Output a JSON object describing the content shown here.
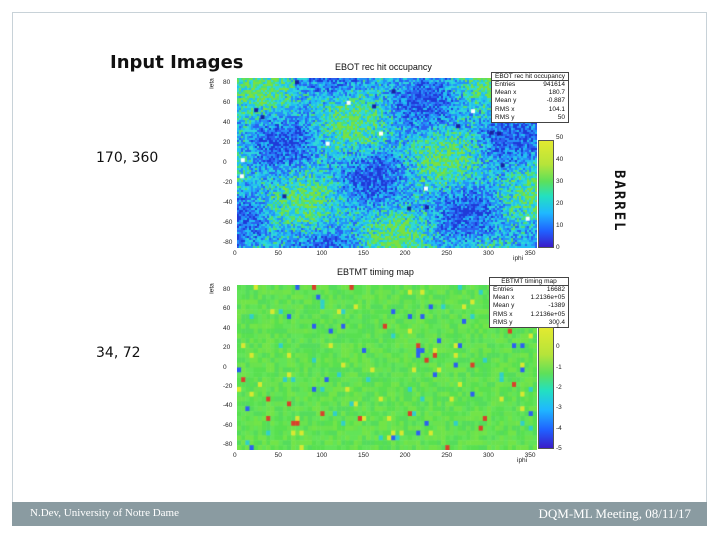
{
  "slide": {
    "title": "Input Images",
    "label_top": "170, 360",
    "label_bottom": "34, 72",
    "side_label": "BARREL",
    "footer_left": "N.Dev, University of Notre Dame",
    "footer_right": "DQM-ML Meeting, 08/11/17"
  },
  "chart_data": [
    {
      "type": "heatmap",
      "title": "EBOT rec hit occupancy",
      "xlabel": "iphi",
      "ylabel": "ieta",
      "xlim": [
        0,
        360
      ],
      "ylim": [
        -85,
        85
      ],
      "x_ticks": [
        "0",
        "50",
        "100",
        "150",
        "200",
        "250",
        "300",
        "350"
      ],
      "y_ticks": [
        "80",
        "60",
        "40",
        "20",
        "0",
        "-20",
        "-40",
        "-60",
        "-80"
      ],
      "grid_size": [
        170,
        360
      ],
      "colorbar_ticks": [
        "50",
        "40",
        "30",
        "20",
        "10",
        "0"
      ],
      "colorbar_range": [
        0,
        50
      ],
      "stats": {
        "title": "EBOT rec hit occupancy",
        "rows": [
          {
            "key": "Entries",
            "value": "941614"
          },
          {
            "key": "Mean x",
            "value": "180.7"
          },
          {
            "key": "Mean y",
            "value": "-0.887"
          },
          {
            "key": "RMS x",
            "value": "104.1"
          },
          {
            "key": "RMS y",
            "value": "50"
          }
        ]
      },
      "colors": {
        "low": "#2a48e0",
        "mid": "#22c0f0",
        "high": "#5fe050",
        "hot": "#ffffff"
      }
    },
    {
      "type": "heatmap",
      "title": "EBTMT timing map",
      "xlabel": "iphi",
      "ylabel": "ieta",
      "xlim": [
        0,
        360
      ],
      "ylim": [
        -85,
        85
      ],
      "x_ticks": [
        "0",
        "50",
        "100",
        "150",
        "200",
        "250",
        "300",
        "350"
      ],
      "y_ticks": [
        "80",
        "60",
        "40",
        "20",
        "0",
        "-20",
        "-40",
        "-60",
        "-80"
      ],
      "grid_size": [
        34,
        72
      ],
      "colorbar_ticks": [
        "1",
        "0",
        "-1",
        "-2",
        "-3",
        "-4",
        "-5"
      ],
      "colorbar_range": [
        -5,
        1
      ],
      "stats": {
        "title": "EBTMT timing map",
        "rows": [
          {
            "key": "Entries",
            "value": "16682"
          },
          {
            "key": "Mean x",
            "value": "1.2136e+05"
          },
          {
            "key": "Mean y",
            "value": "-1389"
          },
          {
            "key": "RMS x",
            "value": "1.2136e+05"
          },
          {
            "key": "RMS y",
            "value": "300.4"
          }
        ]
      },
      "colors": {
        "base": "#60e050",
        "blue": "#2a60f0",
        "red": "#d8402a",
        "yellow": "#d8e830"
      }
    }
  ]
}
